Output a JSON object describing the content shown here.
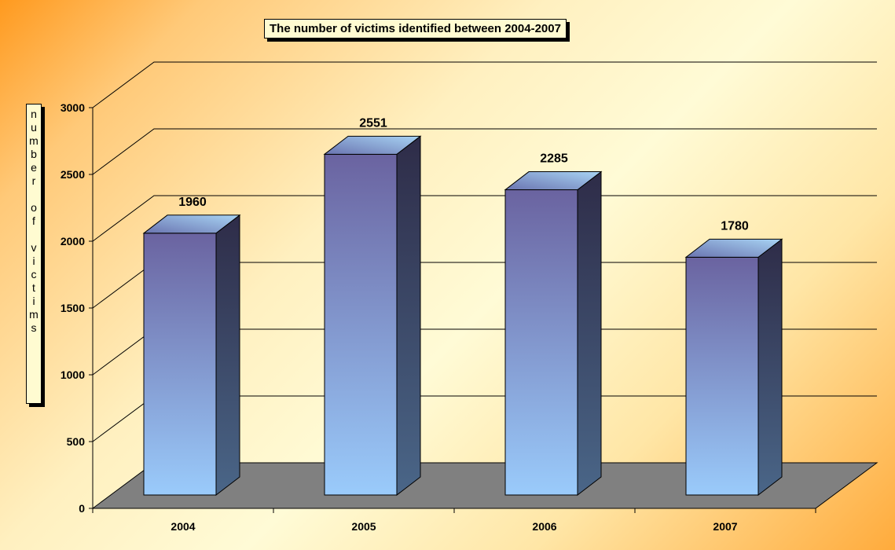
{
  "chart_data": {
    "type": "bar",
    "title": "The number of victims identified between 2004-2007",
    "ylabel": "number of victims",
    "xlabel": "",
    "categories": [
      "2004",
      "2005",
      "2006",
      "2007"
    ],
    "values": [
      1960,
      2551,
      2285,
      1780
    ],
    "data_labels": [
      "1960",
      "2551",
      "2285",
      "1780"
    ],
    "ylim": [
      0,
      3000
    ],
    "yticks": [
      "0",
      "500",
      "1000",
      "1500",
      "2000",
      "2500",
      "3000"
    ],
    "ytick_values": [
      0,
      500,
      1000,
      1500,
      2000,
      2500,
      3000
    ],
    "grid": true,
    "legend": "none",
    "colors": {
      "bar_top": "#6a63a0",
      "bar_bottom": "#9acbfb",
      "floor": "#808080"
    }
  }
}
